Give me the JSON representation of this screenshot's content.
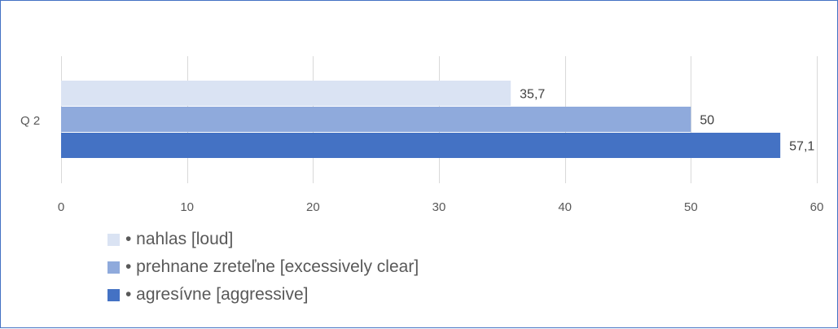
{
  "chart_data": {
    "type": "bar",
    "orientation": "horizontal",
    "categories": [
      "Q 2"
    ],
    "series": [
      {
        "name": "• nahlas [loud]",
        "values": [
          35.7
        ],
        "label": "35,7",
        "color": "#dae3f3"
      },
      {
        "name": "• prehnane zreteľne [excessively clear]",
        "values": [
          50
        ],
        "label": "50",
        "color": "#8faadc"
      },
      {
        "name": "• agresívne [aggressive]",
        "values": [
          57.1
        ],
        "label": "57,1",
        "color": "#4472c4"
      }
    ],
    "xlim": [
      0,
      60
    ],
    "xticks": [
      0,
      10,
      20,
      30,
      40,
      50,
      60
    ],
    "grid": true,
    "legend_position": "bottom-left"
  }
}
